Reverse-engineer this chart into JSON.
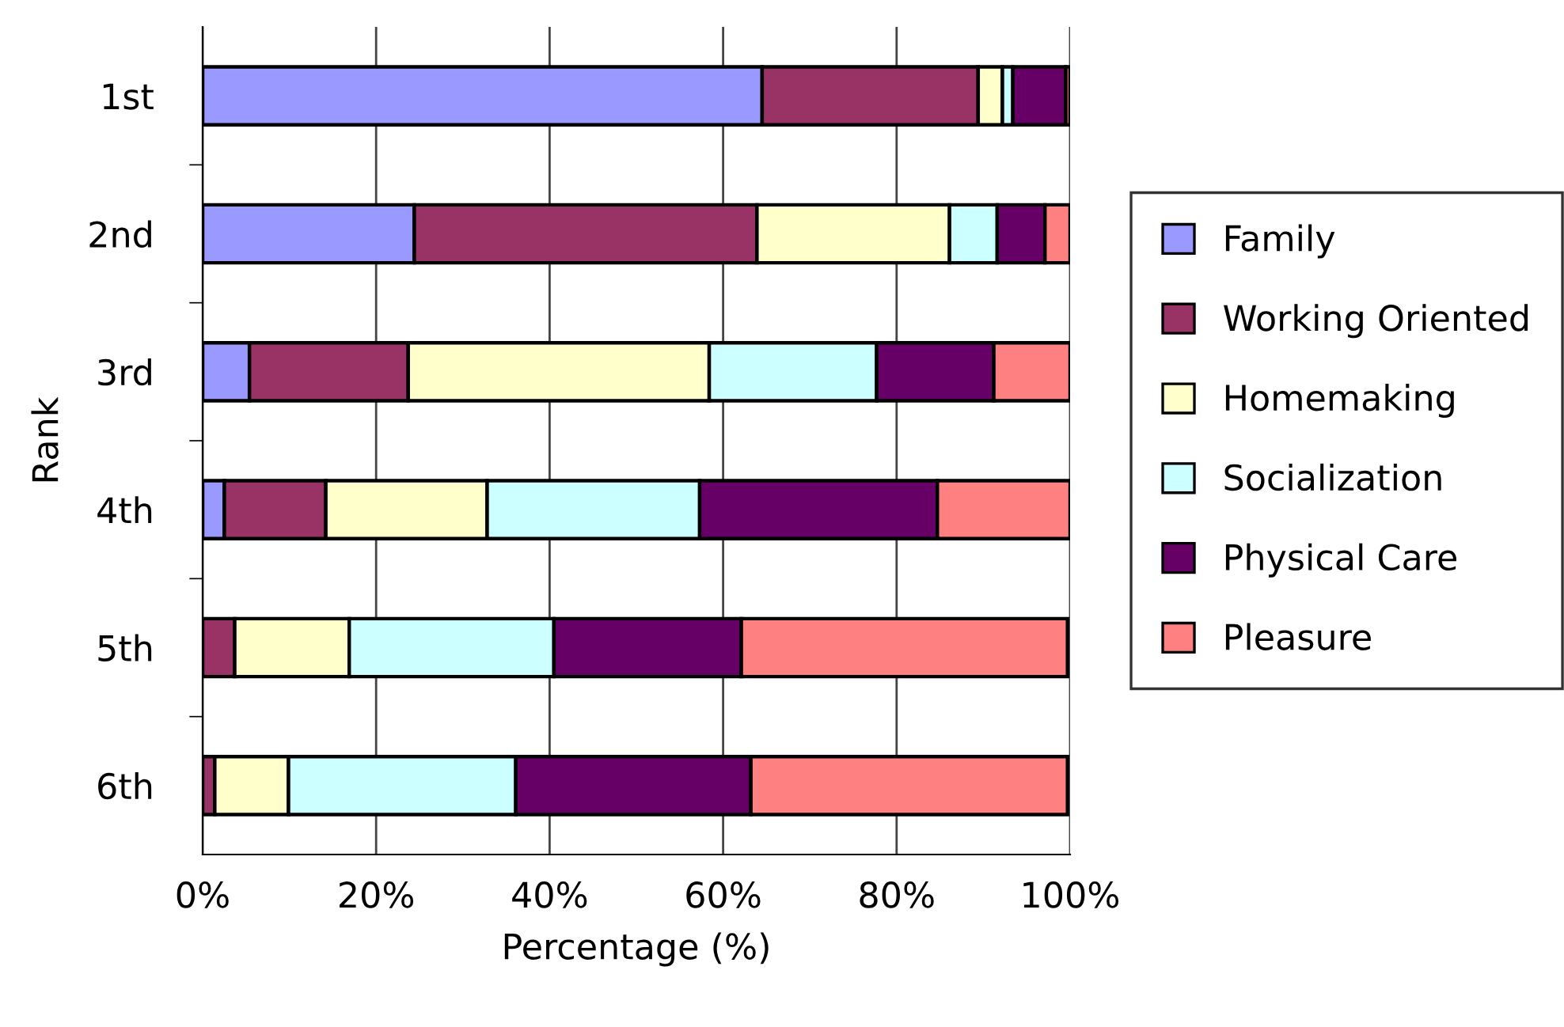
{
  "chart_data": {
    "type": "bar",
    "orientation": "horizontal",
    "stacked": true,
    "xlabel": "Percentage (%)",
    "ylabel": "Rank",
    "categories": [
      "1st",
      "2nd",
      "3rd",
      "4th",
      "5th",
      "6th"
    ],
    "series": [
      {
        "name": "Family",
        "color": "#9999ff",
        "values": [
          64.5,
          24.4,
          5.4,
          2.5,
          null,
          null
        ]
      },
      {
        "name": "Working Oriented",
        "color": "#993366",
        "values": [
          24.9,
          39.5,
          18.3,
          11.7,
          3.7,
          1.4
        ]
      },
      {
        "name": "Homemaking",
        "color": "#ffffcc",
        "values": [
          2.8,
          22.2,
          34.7,
          18.6,
          13.2,
          8.5
        ]
      },
      {
        "name": "Socialization",
        "color": "#ccffff",
        "values": [
          1.2,
          5.5,
          19.3,
          24.5,
          23.6,
          26.2
        ]
      },
      {
        "name": "Physical Care",
        "color": "#660066",
        "values": [
          6.1,
          5.5,
          13.5,
          27.4,
          21.6,
          27.1
        ]
      },
      {
        "name": "Pleasure",
        "color": "#ff8080",
        "values": [
          0.5,
          2.9,
          8.8,
          15.3,
          37.6,
          36.5
        ]
      }
    ],
    "xlim": [
      0,
      100
    ],
    "xticks": [
      {
        "value": 0,
        "label": "0%"
      },
      {
        "value": 20,
        "label": "20%"
      },
      {
        "value": 40,
        "label": "40%"
      },
      {
        "value": 60,
        "label": "60%"
      },
      {
        "value": 80,
        "label": "80%"
      },
      {
        "value": 100,
        "label": "100%"
      }
    ],
    "grid": "x",
    "legend": "right"
  }
}
